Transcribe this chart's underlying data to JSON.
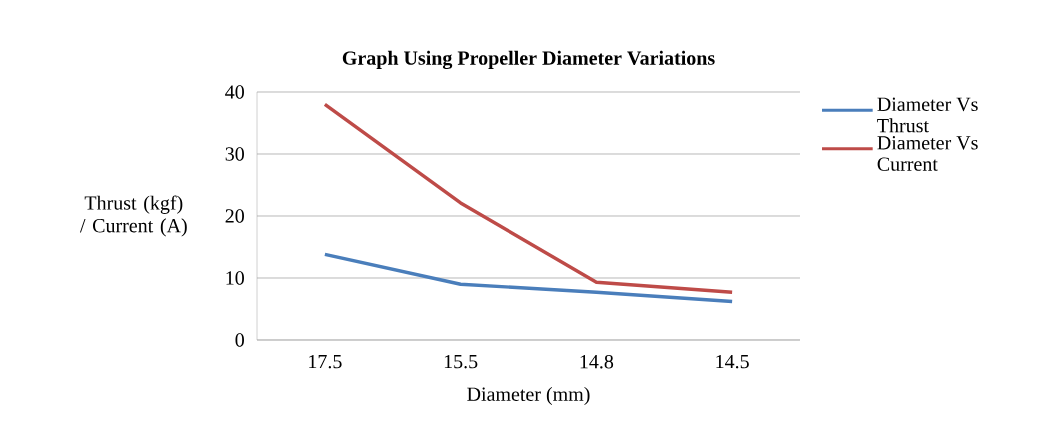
{
  "chart_data": {
    "type": "line",
    "title": "Graph Using Propeller Diameter Variations",
    "xlabel": "Diameter (mm)",
    "ylabel": "Thrust (kgf) / Current (A)",
    "categories": [
      "17.5",
      "15.5",
      "14.8",
      "14.5"
    ],
    "series": [
      {
        "name": "Diameter Vs Thrust",
        "color": "#4a7ebb",
        "values": [
          13.8,
          9.0,
          7.7,
          6.2
        ]
      },
      {
        "name": "Diameter Vs Current",
        "color": "#be4b48",
        "values": [
          38.0,
          22.1,
          9.3,
          7.7
        ]
      }
    ],
    "ylim": [
      0,
      40
    ],
    "yticks": [
      0,
      10,
      20,
      30,
      40
    ],
    "grid": "y",
    "legend": "right",
    "marker": "none",
    "line_style": "solid"
  }
}
